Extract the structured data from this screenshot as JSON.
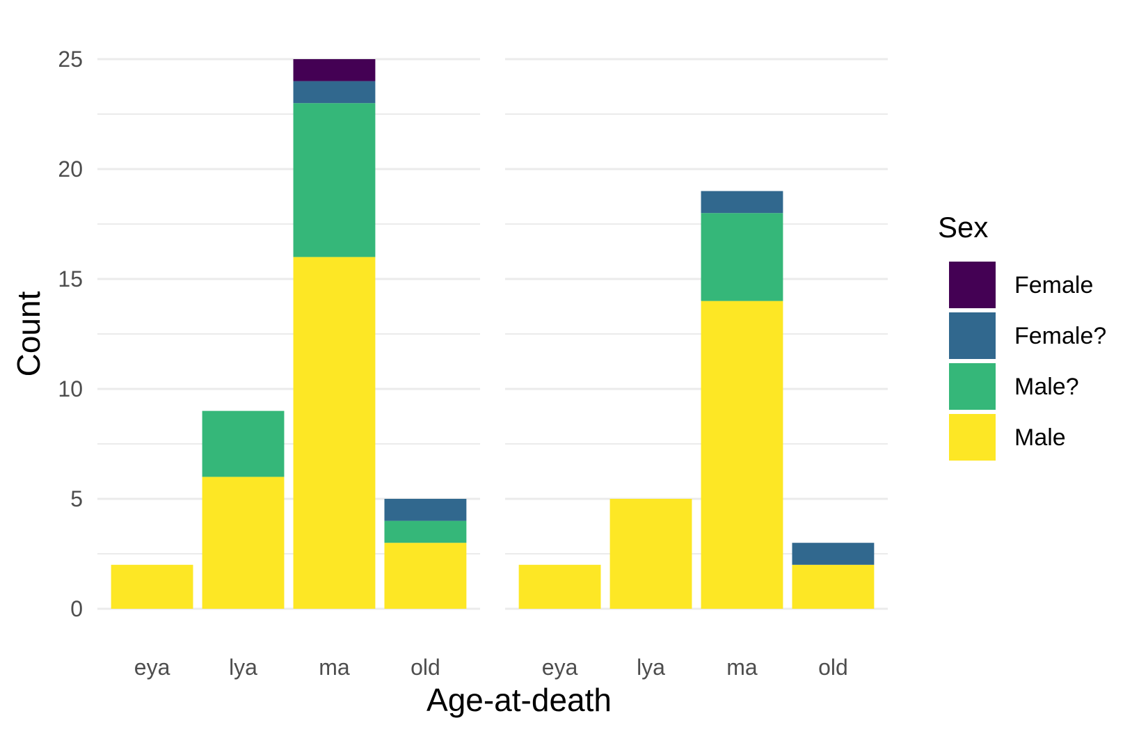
{
  "chart_data": {
    "type": "bar",
    "stacked": true,
    "facets": 2,
    "categories": [
      "eya",
      "lya",
      "ma",
      "old"
    ],
    "xlabel": "Age-at-death",
    "ylabel": "Count",
    "ylim": [
      0,
      25
    ],
    "yticks": [
      0,
      5,
      10,
      15,
      20,
      25
    ],
    "grid": true,
    "legend_position": "right",
    "legend": {
      "title": "Sex",
      "entries": [
        {
          "name": "Female",
          "color": "#440154"
        },
        {
          "name": "Female?",
          "color": "#31688E"
        },
        {
          "name": "Male?",
          "color": "#35B779"
        },
        {
          "name": "Male",
          "color": "#FDE725"
        }
      ]
    },
    "panels": [
      {
        "series": [
          {
            "name": "Male",
            "values": [
              2,
              6,
              16,
              3
            ]
          },
          {
            "name": "Male?",
            "values": [
              0,
              3,
              7,
              1
            ]
          },
          {
            "name": "Female?",
            "values": [
              0,
              0,
              1,
              1
            ]
          },
          {
            "name": "Female",
            "values": [
              0,
              0,
              1,
              0
            ]
          }
        ]
      },
      {
        "series": [
          {
            "name": "Male",
            "values": [
              2,
              5,
              14,
              2
            ]
          },
          {
            "name": "Male?",
            "values": [
              0,
              0,
              4,
              0
            ]
          },
          {
            "name": "Female?",
            "values": [
              0,
              0,
              1,
              1
            ]
          },
          {
            "name": "Female",
            "values": [
              0,
              0,
              0,
              0
            ]
          }
        ]
      }
    ]
  }
}
